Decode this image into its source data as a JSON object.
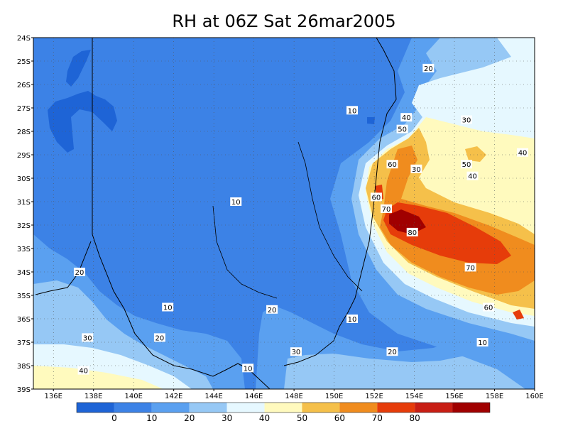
{
  "title": "RH at 06Z Sat 26mar2005",
  "lat_labels": [
    "24S",
    "25S",
    "26S",
    "27S",
    "28S",
    "29S",
    "30S",
    "31S",
    "32S",
    "33S",
    "34S",
    "35S",
    "36S",
    "37S",
    "38S",
    "39S"
  ],
  "lon_labels": [
    "136E",
    "138E",
    "140E",
    "142E",
    "144E",
    "146E",
    "148E",
    "150E",
    "152E",
    "154E",
    "156E",
    "158E",
    "160E"
  ],
  "colorbar": {
    "colors": [
      "#1e64d6",
      "#3c82e6",
      "#5aa0f0",
      "#96c8f5",
      "#e6f8ff",
      "#fffabe",
      "#f5c04a",
      "#f08c1e",
      "#e63c0a",
      "#c81e14",
      "#a00000"
    ],
    "labels": [
      "0",
      "10",
      "20",
      "30",
      "40",
      "50",
      "60",
      "70",
      "80"
    ]
  },
  "contour_labels": [
    {
      "text": "20",
      "lon": 154.7,
      "lat": -25.3
    },
    {
      "text": "10",
      "lon": 150.9,
      "lat": -27.1
    },
    {
      "text": "40",
      "lon": 153.6,
      "lat": -27.4
    },
    {
      "text": "30",
      "lon": 156.6,
      "lat": -27.5
    },
    {
      "text": "50",
      "lon": 153.4,
      "lat": -27.9
    },
    {
      "text": "40",
      "lon": 159.4,
      "lat": -28.9
    },
    {
      "text": "60",
      "lon": 152.9,
      "lat": -29.4
    },
    {
      "text": "50",
      "lon": 156.6,
      "lat": -29.4
    },
    {
      "text": "30",
      "lon": 154.1,
      "lat": -29.6
    },
    {
      "text": "40",
      "lon": 156.9,
      "lat": -29.9
    },
    {
      "text": "60",
      "lon": 152.1,
      "lat": -30.8
    },
    {
      "text": "10",
      "lon": 145.1,
      "lat": -31.0
    },
    {
      "text": "70",
      "lon": 152.6,
      "lat": -31.3
    },
    {
      "text": "80",
      "lon": 153.9,
      "lat": -32.3
    },
    {
      "text": "70",
      "lon": 156.8,
      "lat": -33.8
    },
    {
      "text": "20",
      "lon": 137.3,
      "lat": -34.0
    },
    {
      "text": "10",
      "lon": 141.7,
      "lat": -35.5
    },
    {
      "text": "20",
      "lon": 146.9,
      "lat": -35.6
    },
    {
      "text": "60",
      "lon": 157.7,
      "lat": -35.5
    },
    {
      "text": "10",
      "lon": 150.9,
      "lat": -36.0
    },
    {
      "text": "30",
      "lon": 137.7,
      "lat": -36.8
    },
    {
      "text": "20",
      "lon": 141.3,
      "lat": -36.8
    },
    {
      "text": "10",
      "lon": 157.4,
      "lat": -37.0
    },
    {
      "text": "20",
      "lon": 152.9,
      "lat": -37.4
    },
    {
      "text": "30",
      "lon": 148.1,
      "lat": -37.4
    },
    {
      "text": "40",
      "lon": 137.5,
      "lat": -38.2
    },
    {
      "text": "10",
      "lon": 145.7,
      "lat": -38.1
    }
  ]
}
